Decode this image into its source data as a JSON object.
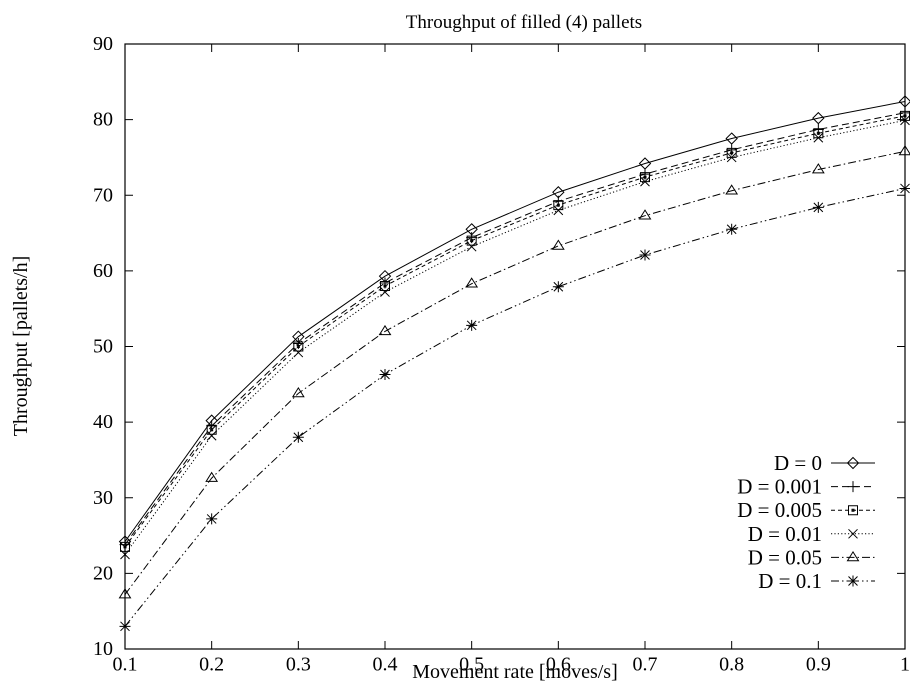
{
  "chart_data": {
    "type": "line",
    "title": "Throughput of filled (4) pallets",
    "xlabel": "Movement rate [moves/s]",
    "ylabel": "Throughput [pallets/h]",
    "xlim": [
      0.1,
      1
    ],
    "ylim": [
      10,
      90
    ],
    "x_ticks": [
      "0.1",
      "0.2",
      "0.3",
      "0.4",
      "0.5",
      "0.6",
      "0.7",
      "0.8",
      "0.9",
      "1"
    ],
    "y_ticks": [
      "10",
      "20",
      "30",
      "40",
      "50",
      "60",
      "70",
      "80",
      "90"
    ],
    "grid": false,
    "legend_position": "bottom-right",
    "x": [
      0.1,
      0.2,
      0.3,
      0.4,
      0.5,
      0.6,
      0.7,
      0.8,
      0.9,
      1.0
    ],
    "series": [
      {
        "name": "D = 0",
        "marker": "diamond",
        "dash": "solid",
        "values": [
          24.2,
          40.2,
          51.3,
          59.3,
          65.5,
          70.4,
          74.2,
          77.5,
          80.2,
          82.4
        ]
      },
      {
        "name": "D = 0.001",
        "marker": "plus",
        "dash": "long-dash",
        "values": [
          23.8,
          39.5,
          50.4,
          58.4,
          64.4,
          69.2,
          72.8,
          76.0,
          78.7,
          80.9
        ]
      },
      {
        "name": "D = 0.005",
        "marker": "square",
        "dash": "short-dash",
        "values": [
          23.5,
          39.0,
          50.0,
          58.0,
          64.0,
          68.7,
          72.4,
          75.6,
          78.2,
          80.5
        ]
      },
      {
        "name": "D = 0.01",
        "marker": "cross",
        "dash": "dotted",
        "values": [
          22.5,
          38.2,
          49.2,
          57.2,
          63.2,
          68.0,
          71.8,
          75.0,
          77.6,
          79.9
        ]
      },
      {
        "name": "D = 0.05",
        "marker": "triangle",
        "dash": "dash-dot",
        "values": [
          17.2,
          32.6,
          43.8,
          52.0,
          58.3,
          63.3,
          67.3,
          70.6,
          73.4,
          75.8
        ]
      },
      {
        "name": "D = 0.1",
        "marker": "star",
        "dash": "dash-dot-dot",
        "values": [
          13.0,
          27.2,
          38.0,
          46.3,
          52.8,
          57.9,
          62.1,
          65.5,
          68.4,
          70.9
        ]
      }
    ]
  }
}
